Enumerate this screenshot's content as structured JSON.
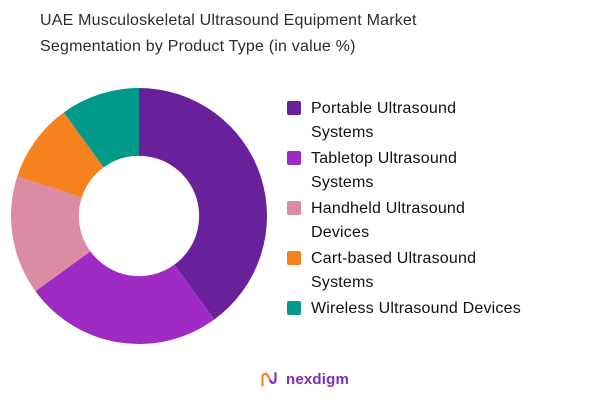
{
  "title": {
    "text": "UAE Musculoskeletal Ultrasound Equipment Market\nSegmentation by Product Type (in value %)"
  },
  "chart_data": {
    "type": "pie",
    "subtype": "donut",
    "title": "UAE Musculoskeletal Ultrasound Equipment Market Segmentation by Product Type (in value %)",
    "legend_position": "right",
    "start_angle_deg": 0,
    "direction": "clockwise",
    "inner_radius_ratio": 0.47,
    "slices": [
      {
        "label": "Portable Ultrasound\nSystems",
        "value": 40,
        "color": "#68209B"
      },
      {
        "label": "Tabletop Ultrasound\nSystems",
        "value": 25,
        "color": "#A02BC4"
      },
      {
        "label": "Handheld Ultrasound\nDevices",
        "value": 15,
        "color": "#DB8CA5"
      },
      {
        "label": "Cart-based Ultrasound\nSystems",
        "value": 10,
        "color": "#F5821F"
      },
      {
        "label": "Wireless Ultrasound Devices",
        "value": 10,
        "color": "#00998A"
      }
    ]
  },
  "footer": {
    "brand": "nexdigm",
    "brand_color": "#7B2FBE",
    "icon_orange": "#F5821F",
    "icon_purple": "#7B2FBE"
  }
}
